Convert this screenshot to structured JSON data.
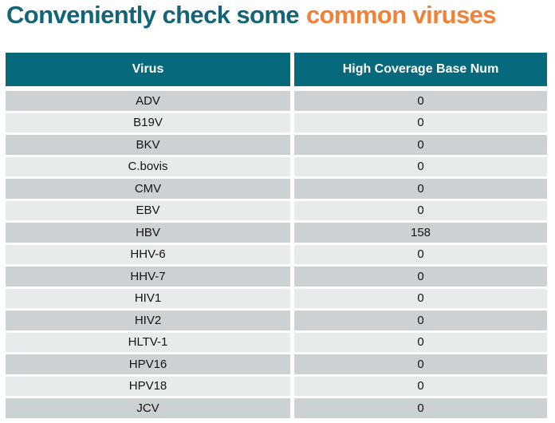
{
  "title": {
    "text_teal": "Conveniently check some",
    "text_orange": "common viruses",
    "color_teal": "#146478",
    "color_orange": "#f08237"
  },
  "table": {
    "columns": [
      "Virus",
      "High Coverage Base Num"
    ],
    "header_bg": "#07697c",
    "header_text_color": "#ffffff",
    "row_stripe_odd": "#ccd2d4",
    "row_stripe_even": "#e7eBeb"
  },
  "chart_data": {
    "type": "table",
    "title": "Conveniently check some common viruses",
    "columns": [
      "Virus",
      "High Coverage Base Num"
    ],
    "rows": [
      [
        "ADV",
        0
      ],
      [
        "B19V",
        0
      ],
      [
        "BKV",
        0
      ],
      [
        "C.bovis",
        0
      ],
      [
        "CMV",
        0
      ],
      [
        "EBV",
        0
      ],
      [
        "HBV",
        158
      ],
      [
        "HHV-6",
        0
      ],
      [
        "HHV-7",
        0
      ],
      [
        "HIV1",
        0
      ],
      [
        "HIV2",
        0
      ],
      [
        "HLTV-1",
        0
      ],
      [
        "HPV16",
        0
      ],
      [
        "HPV18",
        0
      ],
      [
        "JCV",
        0
      ]
    ]
  }
}
